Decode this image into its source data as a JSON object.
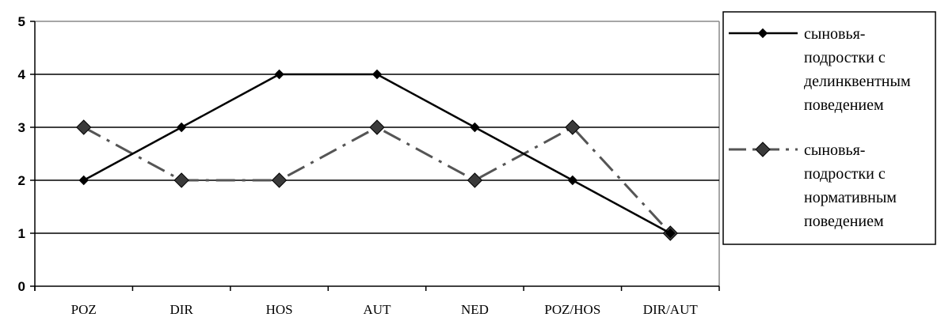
{
  "chart_data": {
    "type": "line",
    "title": "",
    "xlabel": "",
    "ylabel": "",
    "categories": [
      "POZ",
      "DIR",
      "HOS",
      "AUT",
      "NED",
      "POZ/HOS",
      "DIR/AUT"
    ],
    "ylim": [
      0,
      5
    ],
    "yticks": [
      "0",
      "1",
      "2",
      "3",
      "4",
      "5"
    ],
    "grid": true,
    "legend_position": "right",
    "series": [
      {
        "name": "сыновья-подростки с делинквентным поведением",
        "name_lines": [
          "сыновья-",
          "подростки с",
          "делинквентным",
          "поведением"
        ],
        "values": [
          2,
          3,
          4,
          4,
          3,
          2,
          1
        ],
        "color": "#000000",
        "line_style": "solid",
        "marker": "small-diamond"
      },
      {
        "name": "сыновья-подростки с нормативным поведением",
        "name_lines": [
          "сыновья-",
          "подростки с",
          "нормативным",
          "поведением"
        ],
        "values": [
          3,
          2,
          2,
          3,
          2,
          3,
          1
        ],
        "color": "#555555",
        "line_style": "dash-dot",
        "marker": "large-diamond"
      }
    ]
  }
}
